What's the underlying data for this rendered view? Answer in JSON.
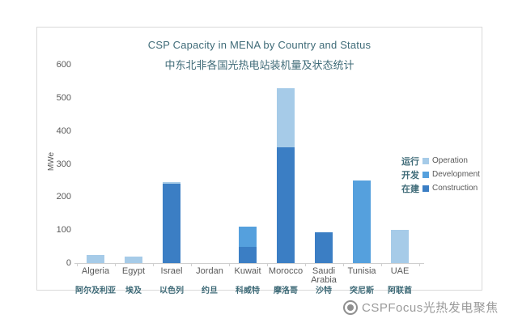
{
  "chart_data": {
    "type": "bar",
    "stacked": true,
    "title": "CSP Capacity in MENA by Country and Status",
    "subtitle_zh": "中东北非各国光热电站装机量及状态统计",
    "ylabel": "MWe",
    "ylim": [
      0,
      600
    ],
    "yticks": [
      0,
      100,
      200,
      300,
      400,
      500,
      600
    ],
    "grid": false,
    "legend_position": "right",
    "categories": [
      "Algeria",
      "Egypt",
      "Israel",
      "Jordan",
      "Kuwait",
      "Morocco",
      "Saudi Arabia",
      "Tunisia",
      "UAE"
    ],
    "categories_zh": [
      "阿尔及利亚",
      "埃及",
      "以色列",
      "约旦",
      "科威特",
      "摩洛哥",
      "沙特",
      "突尼斯",
      "阿联酋"
    ],
    "series": [
      {
        "name": "Construction",
        "name_zh": "在建",
        "color": "#3b7ec4",
        "values": [
          0,
          0,
          240,
          0,
          50,
          350,
          93,
          0,
          0
        ]
      },
      {
        "name": "Development",
        "name_zh": "开发",
        "color": "#55a0dd",
        "values": [
          0,
          0,
          0,
          0,
          60,
          0,
          0,
          250,
          0
        ]
      },
      {
        "name": "Operation",
        "name_zh": "运行",
        "color": "#a6cbe8",
        "values": [
          25,
          20,
          6,
          0,
          0,
          180,
          0,
          0,
          100
        ]
      }
    ],
    "totals": [
      25,
      20,
      246,
      0,
      110,
      530,
      93,
      250,
      100
    ]
  },
  "footer": {
    "logo_text": "CSPFocus光热发电聚焦"
  }
}
